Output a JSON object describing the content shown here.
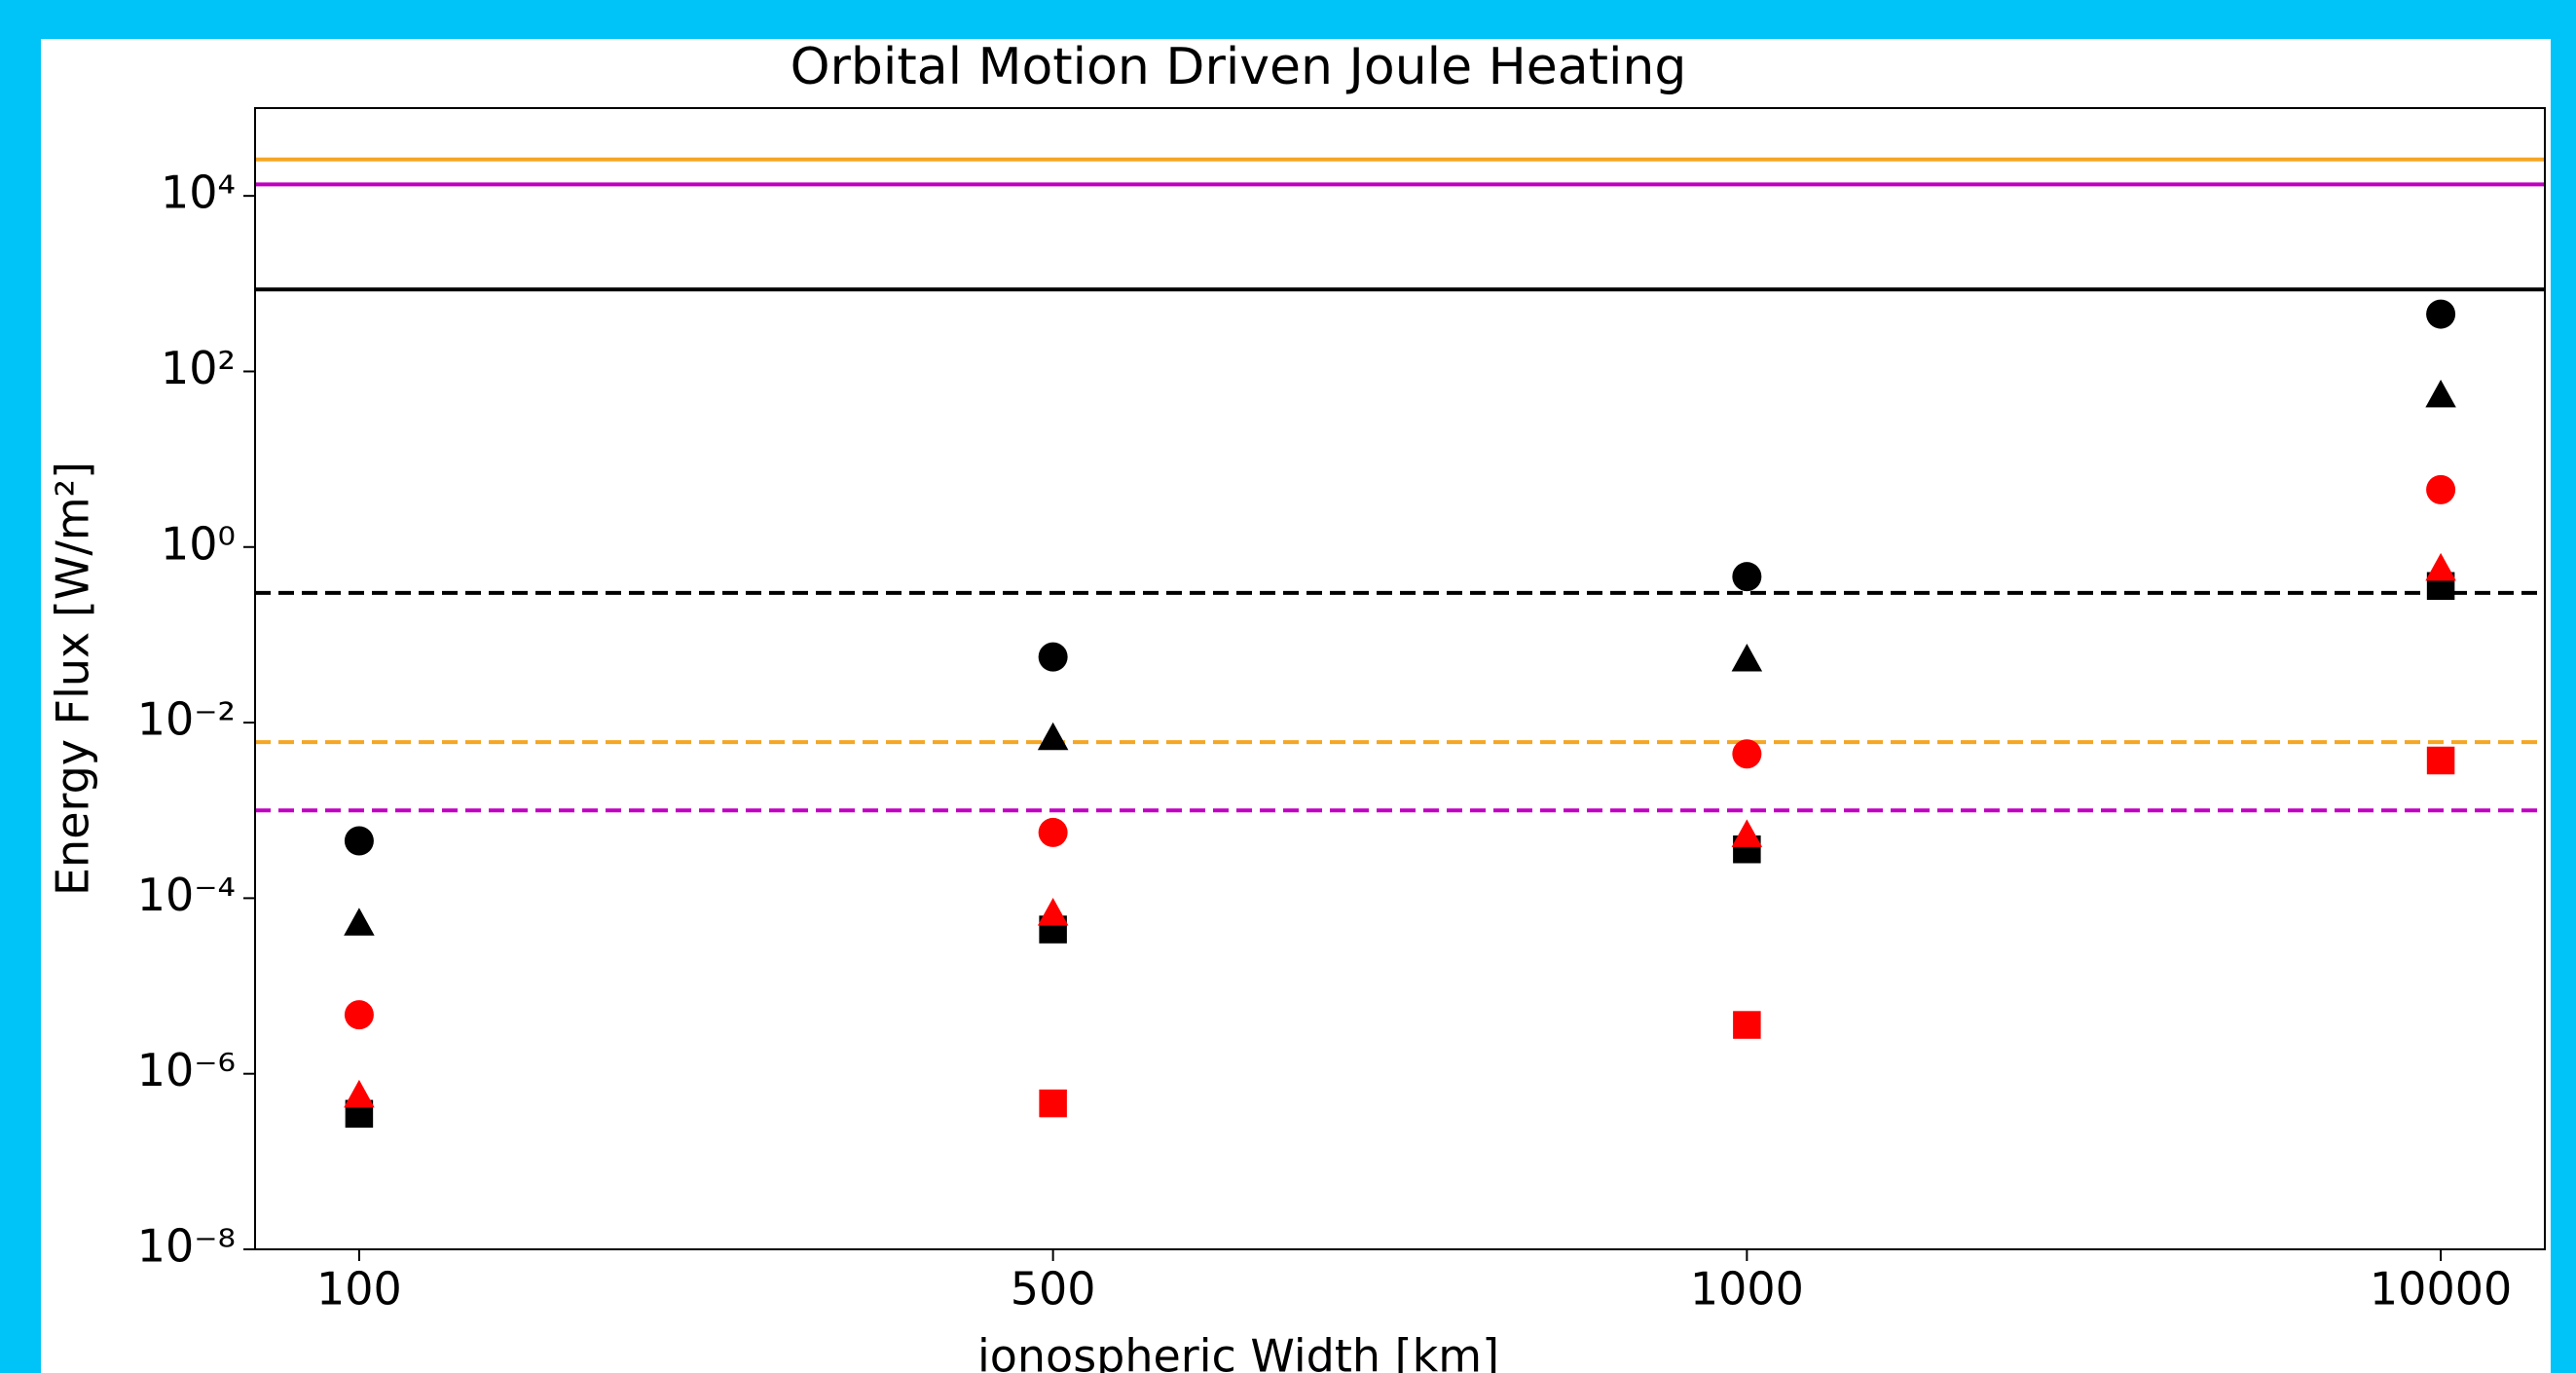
{
  "chart_data": {
    "type": "scatter",
    "title": "Orbital Motion Driven Joule Heating",
    "x_label": "ionospheric Width [km]",
    "y_label": "Energy Flux [W/m²]",
    "categories": [
      "100",
      "500",
      "1000",
      "10000"
    ],
    "log_y": true,
    "ylim": [
      1e-08,
      100000.0
    ],
    "yticks": [
      {
        "value": 1e-08,
        "label": "10⁻⁸"
      },
      {
        "value": 1e-06,
        "label": "10⁻⁶"
      },
      {
        "value": 0.0001,
        "label": "10⁻⁴"
      },
      {
        "value": 0.01,
        "label": "10⁻²"
      },
      {
        "value": 1,
        "label": "10⁰"
      },
      {
        "value": 100,
        "label": "10²"
      },
      {
        "value": 10000,
        "label": "10⁴"
      }
    ],
    "hlines": [
      {
        "value": 26000,
        "color": "#f5a623",
        "style": "solid"
      },
      {
        "value": 13500,
        "color": "#c000c0",
        "style": "solid"
      },
      {
        "value": 860,
        "color": "#000000",
        "style": "solid"
      },
      {
        "value": 0.3,
        "color": "#000000",
        "style": "dashed"
      },
      {
        "value": 0.006,
        "color": "#f5a623",
        "style": "dashed"
      },
      {
        "value": 0.001,
        "color": "#c000c0",
        "style": "dashed"
      }
    ],
    "series": [
      {
        "color": "#000000",
        "marker": "circle",
        "values": [
          0.00045,
          0.056,
          0.46,
          450
        ]
      },
      {
        "color": "#000000",
        "marker": "triangle",
        "values": [
          5e-05,
          0.0065,
          0.051,
          52
        ]
      },
      {
        "color": "#ff0000",
        "marker": "circle",
        "values": [
          4.7e-06,
          0.00056,
          0.0044,
          4.5
        ]
      },
      {
        "color": "#000000",
        "marker": "square",
        "values": [
          3.5e-07,
          4.4e-05,
          0.00036,
          0.36
        ]
      },
      {
        "color": "#ff0000",
        "marker": "triangle",
        "values": [
          5.5e-07,
          6.5e-05,
          0.00051,
          0.55
        ]
      },
      {
        "color": "#ff0000",
        "marker": "square",
        "values": [
          null,
          4.6e-07,
          3.6e-06,
          0.0037
        ]
      }
    ]
  }
}
